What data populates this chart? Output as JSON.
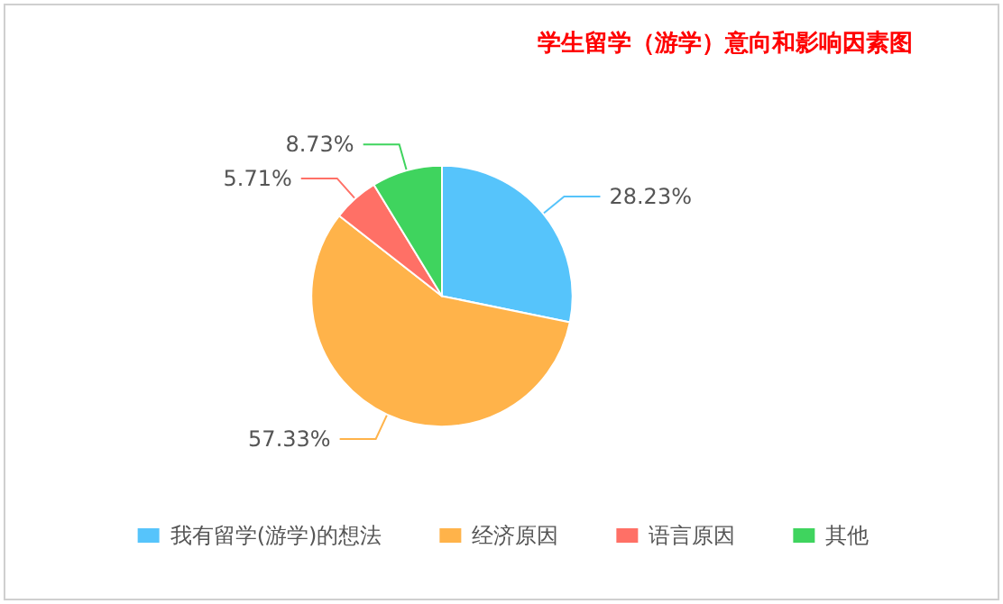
{
  "chart_data": {
    "type": "pie",
    "title": "学生留学（游学）意向和影响因素图",
    "categories": [
      "我有留学(游学)的想法",
      "经济原因",
      "语言原因",
      "其他"
    ],
    "values": [
      28.23,
      57.33,
      5.71,
      8.73
    ],
    "colors": [
      "#56c4fb",
      "#ffb34a",
      "#ff7066",
      "#3fd45e"
    ],
    "value_labels": [
      "28.23%",
      "57.33%",
      "5.71%",
      "8.73%"
    ],
    "legend": "bottom"
  }
}
